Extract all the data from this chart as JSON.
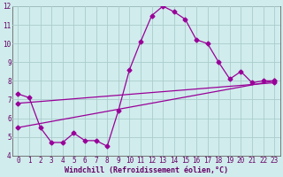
{
  "xlabel": "Windchill (Refroidissement éolien,°C)",
  "background_color": "#d0ecec",
  "grid_color": "#aacccc",
  "line_color": "#990099",
  "spine_color": "#666666",
  "xlim": [
    -0.5,
    23.5
  ],
  "ylim": [
    4,
    12
  ],
  "yticks": [
    4,
    5,
    6,
    7,
    8,
    9,
    10,
    11,
    12
  ],
  "xticks": [
    0,
    1,
    2,
    3,
    4,
    5,
    6,
    7,
    8,
    9,
    10,
    11,
    12,
    13,
    14,
    15,
    16,
    17,
    18,
    19,
    20,
    21,
    22,
    23
  ],
  "series1_x": [
    0,
    1,
    2,
    3,
    4,
    5,
    6,
    7,
    8,
    9,
    10,
    11,
    12,
    13,
    14,
    15,
    16,
    17,
    18,
    19,
    20,
    21,
    22,
    23
  ],
  "series1_y": [
    7.3,
    7.1,
    5.5,
    4.7,
    4.7,
    5.2,
    4.8,
    4.8,
    4.5,
    6.4,
    8.6,
    10.1,
    11.5,
    12.0,
    11.7,
    11.3,
    10.2,
    10.0,
    9.0,
    8.1,
    8.5,
    7.9,
    8.0,
    8.0
  ],
  "series2_x": [
    0,
    23
  ],
  "series2_y": [
    5.5,
    8.0
  ],
  "series3_x": [
    0,
    23
  ],
  "series3_y": [
    6.8,
    7.9
  ],
  "markersize": 2.5,
  "linewidth": 0.9,
  "tick_fontsize": 5.5,
  "xlabel_fontsize": 6.0,
  "label_color": "#660066"
}
